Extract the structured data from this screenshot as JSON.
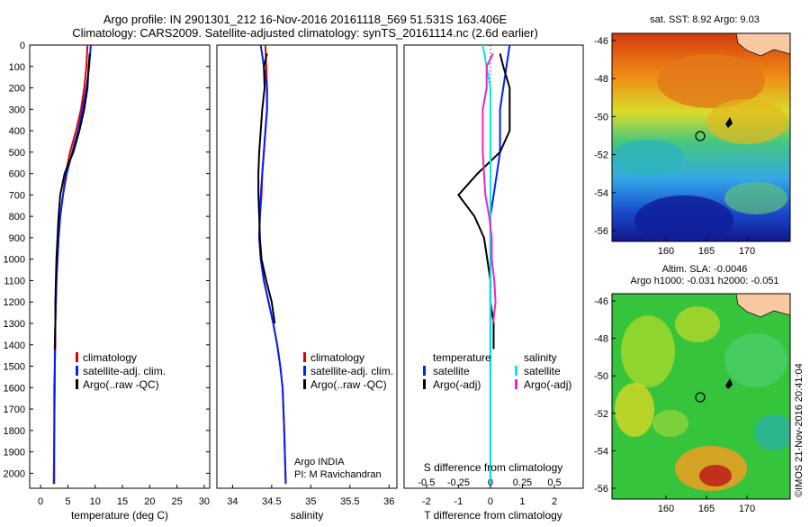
{
  "header": {
    "line1": "Argo profile: IN 2901301_212 16-Nov-2016 20161118_569 51.531S 163.406E",
    "line2": "Climatology: CARS2009. Satellite-adjusted climatology: synTS_20161114.nc (2.6d earlier)"
  },
  "colors": {
    "climatology": "#e00000",
    "satellite": "#0020ff",
    "argo": "#000000",
    "sat_salinity": "#00e8e8",
    "argo_salinity": "#ee22cc"
  },
  "depth_axis": {
    "ticks": [
      "0",
      "100",
      "200",
      "300",
      "400",
      "500",
      "600",
      "700",
      "800",
      "900",
      "1000",
      "1100",
      "1200",
      "1300",
      "1400",
      "1500",
      "1600",
      "1700",
      "1800",
      "1900",
      "2000"
    ]
  },
  "temperature_panel": {
    "xlabel": "temperature (deg C)",
    "ticks": [
      "0",
      "5",
      "10",
      "15",
      "20",
      "25",
      "30"
    ],
    "legend": [
      "climatology",
      "satellite-adj. clim.",
      "Argo(..raw -QC)"
    ]
  },
  "salinity_panel": {
    "xlabel": "salinity",
    "ticks": [
      "34",
      "34.5",
      "35",
      "35.5",
      "36"
    ],
    "legend": [
      "climatology",
      "satellite-adj. clim.",
      "Argo(..raw -QC)"
    ],
    "note_line1": "Argo INDIA",
    "note_line2": "PI: M Ravichandran"
  },
  "difference_panel": {
    "xlabel": "T difference from climatology",
    "top_label": "S difference from climatology",
    "t_ticks": [
      "-2",
      "-1",
      "0",
      "1",
      "2"
    ],
    "s_ticks": [
      "-0.5",
      "-0.25",
      "0",
      "0.25",
      "0.5"
    ],
    "legend_temp_title": "temperature",
    "legend_sal_title": "salinity",
    "legend_temp": [
      "satellite",
      "Argo(-adj)"
    ],
    "legend_sal": [
      "satellite",
      "Argo(-adj)"
    ]
  },
  "sst_map": {
    "title": "sat. SST: 8.92  Argo: 9.03",
    "yticks": [
      "-46",
      "-48",
      "-50",
      "-52",
      "-54",
      "-56"
    ],
    "xticks": [
      "160",
      "165",
      "170"
    ]
  },
  "sla_map": {
    "title1": "Altim. SLA: -0.0046",
    "title2": "Argo h1000: -0.031 h2000: -0.051",
    "yticks": [
      "-46",
      "-48",
      "-50",
      "-52",
      "-54",
      "-56"
    ],
    "xticks": [
      "160",
      "165",
      "170"
    ]
  },
  "credit": "©IMOS 21-Nov-2016 20:41:04",
  "chart_data": [
    {
      "type": "line",
      "name": "temperature profile",
      "xlabel": "temperature (deg C)",
      "ylabel": "",
      "xlim": [
        -2,
        31
      ],
      "ylim": [
        2070,
        0
      ],
      "series": [
        {
          "name": "climatology",
          "color": "#e00000",
          "x": [
            8.6,
            8.4,
            8.0,
            7.4,
            6.5,
            5.4,
            4.6,
            4.1,
            3.6,
            3.3,
            3.1,
            2.9,
            2.8,
            2.7,
            2.7,
            2.6,
            2.6,
            2.5,
            2.5
          ],
          "y": [
            0,
            100,
            200,
            300,
            400,
            500,
            600,
            700,
            800,
            900,
            1000,
            1100,
            1200,
            1300,
            1400,
            1500,
            1600,
            1800,
            2050
          ]
        },
        {
          "name": "satellite-adj. clim.",
          "color": "#0020ff",
          "x": [
            9.2,
            8.9,
            8.4,
            7.7,
            6.9,
            5.8,
            4.8,
            4.1,
            3.6,
            3.3,
            3.1,
            2.9,
            2.8,
            2.7,
            2.6,
            2.6,
            2.5,
            2.5,
            2.4
          ],
          "y": [
            0,
            100,
            200,
            300,
            400,
            500,
            600,
            700,
            800,
            900,
            1000,
            1100,
            1200,
            1300,
            1400,
            1500,
            1600,
            1800,
            2050
          ]
        },
        {
          "name": "Argo(..raw -QC)",
          "color": "#000000",
          "x": [
            9.0,
            8.8,
            8.6,
            8.0,
            7.1,
            6.0,
            4.4,
            3.6,
            3.3,
            3.1,
            2.9,
            2.8,
            2.7,
            2.7,
            2.6
          ],
          "y": [
            40,
            100,
            200,
            300,
            400,
            500,
            600,
            700,
            800,
            900,
            1000,
            1100,
            1200,
            1300,
            1420
          ]
        }
      ]
    },
    {
      "type": "line",
      "name": "salinity profile",
      "xlabel": "salinity",
      "ylabel": "",
      "xlim": [
        33.8,
        36.1
      ],
      "ylim": [
        2070,
        0
      ],
      "series": [
        {
          "name": "climatology",
          "color": "#e00000",
          "x": [
            34.42,
            34.43,
            34.44,
            34.44,
            34.42,
            34.4,
            34.38,
            34.37,
            34.35,
            34.34,
            34.36,
            34.4,
            34.46,
            34.52,
            34.57,
            34.61,
            34.64,
            34.66,
            34.68
          ],
          "y": [
            0,
            100,
            200,
            300,
            400,
            500,
            600,
            700,
            800,
            900,
            1000,
            1100,
            1200,
            1300,
            1400,
            1500,
            1600,
            1800,
            2050
          ]
        },
        {
          "name": "satellite-adj. clim.",
          "color": "#0020ff",
          "x": [
            34.36,
            34.4,
            34.44,
            34.44,
            34.42,
            34.4,
            34.38,
            34.36,
            34.35,
            34.34,
            34.36,
            34.4,
            34.46,
            34.52,
            34.57,
            34.61,
            34.64,
            34.66,
            34.68
          ],
          "y": [
            0,
            100,
            200,
            300,
            400,
            500,
            600,
            700,
            800,
            900,
            1000,
            1100,
            1200,
            1300,
            1400,
            1500,
            1600,
            1800,
            2050
          ]
        },
        {
          "name": "Argo(..raw -QC)",
          "color": "#000000",
          "x": [
            34.44,
            34.4,
            34.41,
            34.38,
            34.36,
            34.34,
            34.33,
            34.33,
            34.34,
            34.35,
            34.37,
            34.43,
            34.5,
            34.54
          ],
          "y": [
            40,
            100,
            200,
            300,
            400,
            500,
            600,
            700,
            800,
            900,
            1000,
            1100,
            1200,
            1300
          ]
        }
      ]
    },
    {
      "type": "line",
      "name": "difference from climatology",
      "xlabel": "T difference from climatology",
      "ylabel": "",
      "xlim": [
        -2.7,
        2.9
      ],
      "ylim": [
        2070,
        0
      ],
      "series": [
        {
          "name": "temperature satellite",
          "color": "#0020ff",
          "x": [
            0.6,
            0.5,
            0.4,
            0.3,
            0.3,
            0.3,
            0.2,
            0.1,
            0.0,
            0.0,
            0.0,
            0.0,
            0.0,
            0.0,
            0.0,
            0.0,
            0.0,
            0.0,
            0.0
          ],
          "y": [
            0,
            100,
            200,
            300,
            400,
            500,
            600,
            700,
            800,
            900,
            1000,
            1100,
            1200,
            1300,
            1400,
            1500,
            1600,
            1800,
            2050
          ]
        },
        {
          "name": "temperature Argo(-adj)",
          "color": "#000000",
          "x": [
            0.3,
            0.4,
            0.6,
            0.6,
            0.6,
            0.3,
            -0.4,
            -1.0,
            -0.5,
            -0.2,
            -0.1,
            0.0,
            0.0,
            0.1,
            0.1
          ],
          "y": [
            40,
            100,
            200,
            300,
            400,
            500,
            600,
            700,
            800,
            900,
            1000,
            1100,
            1200,
            1300,
            1420
          ]
        },
        {
          "name": "salinity satellite",
          "color": "#00e8e8",
          "x": [
            -0.06,
            -0.03,
            0.0,
            0.0,
            0.0,
            0.0,
            0.0,
            0.0,
            0.0,
            0.0,
            0.0,
            0.0,
            0.0,
            0.0,
            0.0,
            0.0,
            0.0,
            0.0,
            0.0
          ],
          "y": [
            0,
            100,
            200,
            300,
            400,
            500,
            600,
            700,
            800,
            900,
            1000,
            1100,
            1200,
            1300,
            1400,
            1500,
            1600,
            1800,
            2050
          ]
        },
        {
          "name": "salinity Argo(-adj)",
          "color": "#ee22cc",
          "x": [
            0.02,
            -0.03,
            -0.03,
            -0.06,
            -0.06,
            -0.06,
            -0.05,
            -0.04,
            -0.01,
            0.01,
            0.01,
            0.03,
            0.04,
            0.02
          ],
          "y": [
            40,
            100,
            200,
            300,
            400,
            500,
            600,
            700,
            800,
            900,
            1000,
            1100,
            1200,
            1300
          ]
        }
      ]
    }
  ]
}
